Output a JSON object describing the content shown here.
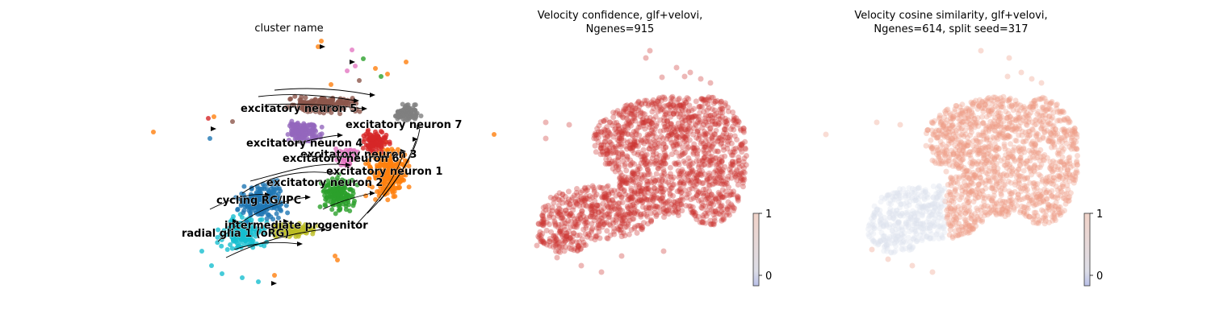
{
  "colors": {
    "cycling_rg": "#1f77b4",
    "radial_glia": "#17becf",
    "intermediate": "#bcbd22",
    "exc1": "#ff7f0e",
    "exc2": "#2ca02c",
    "exc3": "#d62728",
    "exc4": "#9467bd",
    "exc5": "#8c564b",
    "exc6": "#e377c2",
    "exc7": "#7f7f7f",
    "confidence_point": "#cc3330",
    "cosine_point": "#ee9c84",
    "cosine_low": "#dde2ee"
  },
  "chart_data": [
    {
      "type": "scatter",
      "title": "cluster name",
      "xlabel": "",
      "ylabel": "",
      "grid": false,
      "overlay": "velocity streamlines (arrows)",
      "labels_on_data": [
        "excitatory neuron 5",
        "excitatory neuron 7",
        "excitatory neuron 4",
        "excitatory neuron 3",
        "excitatory neuron 6",
        "excitatory neuron 1",
        "excitatory neuron 2",
        "cycling RG/IPC",
        "intermediate progenitor",
        "radial glia 1 (oRG)"
      ]
    },
    {
      "type": "scatter",
      "title_line1": "Velocity confidence, glf+velovi,",
      "title_line2": "Ngenes=915",
      "colorbar": {
        "ticks": [
          "0",
          "1"
        ],
        "range": [
          -0.2,
          1
        ]
      },
      "grid": false
    },
    {
      "type": "scatter",
      "title_line1": "Velocity cosine similarity, glf+velovi,",
      "title_line2": "Ngenes=614, split seed=317",
      "colorbar": {
        "ticks": [
          "0",
          "1"
        ],
        "range": [
          -0.2,
          1
        ]
      },
      "grid": false
    }
  ]
}
